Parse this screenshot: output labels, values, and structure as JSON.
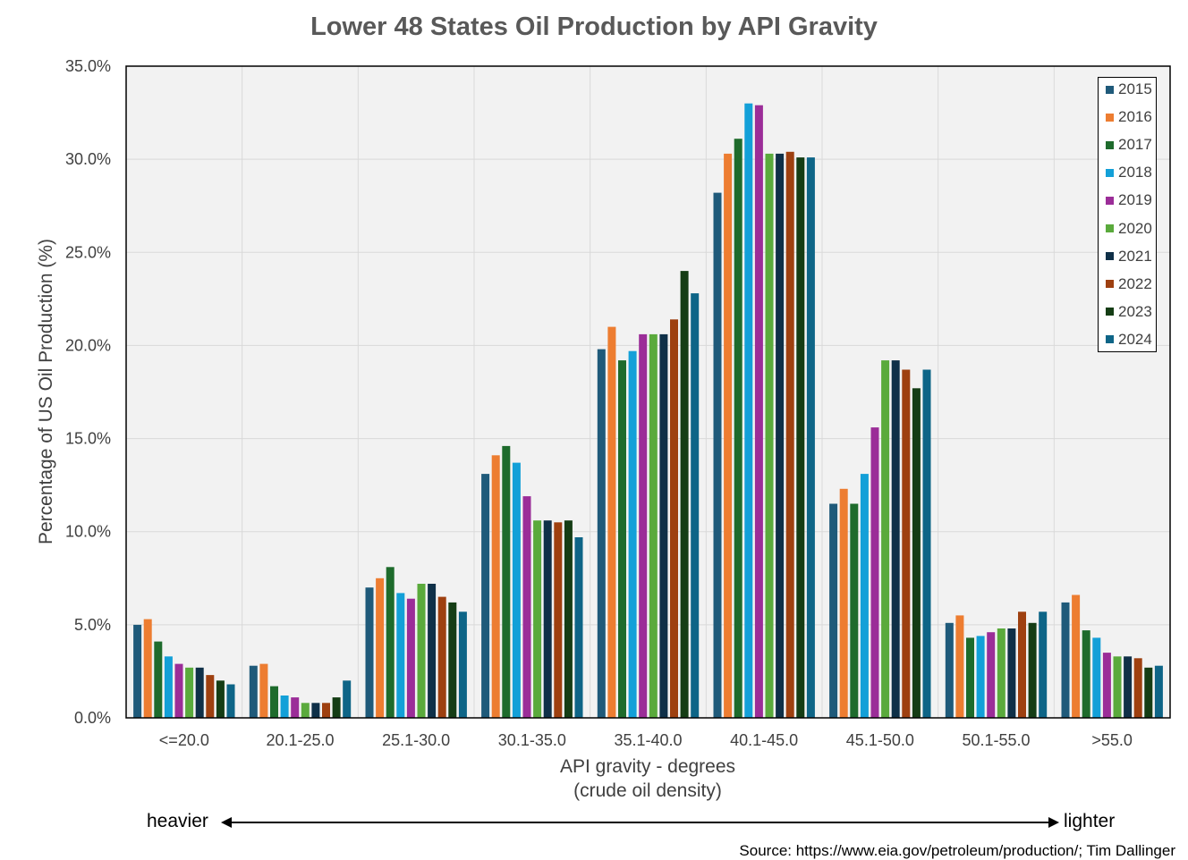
{
  "chart_data": {
    "type": "bar",
    "title": "Lower 48 States Oil Production by API Gravity",
    "xlabel_line1": "API gravity - degrees",
    "xlabel_line2": "(crude oil density)",
    "ylabel": "Percentage of US Oil Production (%)",
    "ylim": [
      0,
      35
    ],
    "yticks": [
      "0.0%",
      "5.0%",
      "10.0%",
      "15.0%",
      "20.0%",
      "25.0%",
      "30.0%",
      "35.0%"
    ],
    "grid": true,
    "legend_position": "top-right",
    "categories": [
      "<=20.0",
      "20.1-25.0",
      "25.1-30.0",
      "30.1-35.0",
      "35.1-40.0",
      "40.1-45.0",
      "45.1-50.0",
      "50.1-55.0",
      ">55.0"
    ],
    "series": [
      {
        "name": "2015",
        "color": "#1f5a7a",
        "values": [
          5.0,
          2.8,
          7.0,
          13.1,
          19.8,
          28.2,
          11.5,
          5.1,
          6.2
        ]
      },
      {
        "name": "2016",
        "color": "#ed7d31",
        "values": [
          5.3,
          2.9,
          7.5,
          14.1,
          21.0,
          30.3,
          12.3,
          5.5,
          6.6
        ]
      },
      {
        "name": "2017",
        "color": "#1e6b2c",
        "values": [
          4.1,
          1.7,
          8.1,
          14.6,
          19.2,
          31.1,
          11.5,
          4.3,
          4.7
        ]
      },
      {
        "name": "2018",
        "color": "#13a0d8",
        "values": [
          3.3,
          1.2,
          6.7,
          13.7,
          19.7,
          33.0,
          13.1,
          4.4,
          4.3
        ]
      },
      {
        "name": "2019",
        "color": "#9b2d98",
        "values": [
          2.9,
          1.1,
          6.4,
          11.9,
          20.6,
          32.9,
          15.6,
          4.6,
          3.5
        ]
      },
      {
        "name": "2020",
        "color": "#5aaa3c",
        "values": [
          2.7,
          0.8,
          7.2,
          10.6,
          20.6,
          30.3,
          19.2,
          4.8,
          3.3
        ]
      },
      {
        "name": "2021",
        "color": "#0f3048",
        "values": [
          2.7,
          0.8,
          7.2,
          10.6,
          20.6,
          30.3,
          19.2,
          4.8,
          3.3
        ]
      },
      {
        "name": "2022",
        "color": "#9e4010",
        "values": [
          2.3,
          0.8,
          6.5,
          10.5,
          21.4,
          30.4,
          18.7,
          5.7,
          3.2
        ]
      },
      {
        "name": "2023",
        "color": "#153d15",
        "values": [
          2.0,
          1.1,
          6.2,
          10.6,
          24.0,
          30.1,
          17.7,
          5.1,
          2.7
        ]
      },
      {
        "name": "2024",
        "color": "#0e6587",
        "values": [
          1.8,
          2.0,
          5.7,
          9.7,
          22.8,
          30.1,
          18.7,
          5.7,
          2.8
        ]
      }
    ]
  },
  "annotations": {
    "heavier": "heavier",
    "lighter": "lighter",
    "source": "Source: https://www.eia.gov/petroleum/production/; Tim Dallinger"
  }
}
